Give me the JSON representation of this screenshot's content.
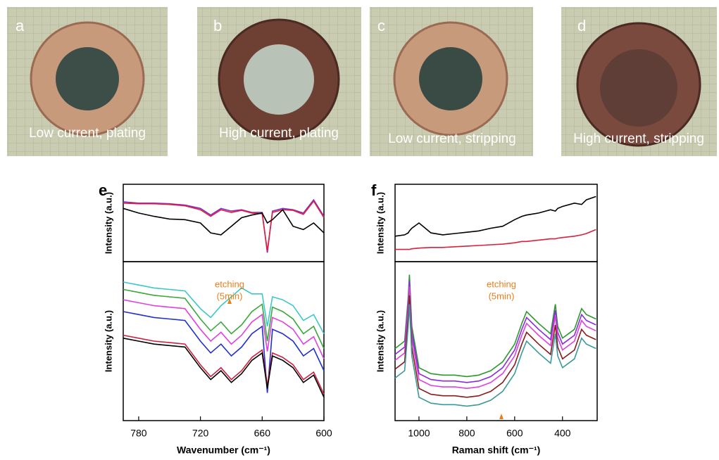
{
  "photos": [
    {
      "letter": "a",
      "caption": "Low current, plating"
    },
    {
      "letter": "b",
      "caption": "High current, plating"
    },
    {
      "letter": "c",
      "caption": "Low current, stripping"
    },
    {
      "letter": "d",
      "caption": "High current, stripping"
    }
  ],
  "chart_data": [
    {
      "type": "line",
      "label": "e",
      "xlabel": "Wavenumber (cm⁻¹)",
      "xlim": [
        795,
        600
      ],
      "xticks": [
        780,
        720,
        660,
        600
      ],
      "annotation": [
        "etching",
        "(5min)"
      ],
      "panels": [
        {
          "ylabel": "Intensity (a.u.)",
          "ylim": [
            0,
            1
          ],
          "x": [
            795,
            780,
            765,
            750,
            735,
            720,
            710,
            700,
            690,
            680,
            670,
            660,
            655,
            650,
            640,
            630,
            620,
            610,
            600
          ],
          "series": [
            {
              "color": "#7b2fd0",
              "values": [
                0.82,
                0.8,
                0.8,
                0.79,
                0.77,
                0.72,
                0.62,
                0.72,
                0.68,
                0.7,
                0.66,
                0.66,
                0.05,
                0.68,
                0.72,
                0.7,
                0.65,
                0.85,
                0.6
              ]
            },
            {
              "color": "#e0203a",
              "values": [
                0.8,
                0.79,
                0.79,
                0.78,
                0.76,
                0.7,
                0.6,
                0.7,
                0.66,
                0.69,
                0.65,
                0.64,
                0.08,
                0.66,
                0.7,
                0.69,
                0.63,
                0.83,
                0.58
              ]
            },
            {
              "color": "#000000",
              "values": [
                0.72,
                0.65,
                0.6,
                0.56,
                0.55,
                0.5,
                0.35,
                0.32,
                0.45,
                0.58,
                0.62,
                0.65,
                0.5,
                0.55,
                0.7,
                0.45,
                0.4,
                0.5,
                0.35
              ]
            }
          ]
        },
        {
          "ylabel": "Intensity (a.u.)",
          "ylim": [
            0,
            1
          ],
          "x": [
            795,
            780,
            765,
            750,
            735,
            720,
            710,
            700,
            690,
            680,
            670,
            660,
            655,
            650,
            640,
            630,
            620,
            610,
            600
          ],
          "series": [
            {
              "color": "#3cc8c8",
              "values": [
                0.9,
                0.88,
                0.86,
                0.85,
                0.84,
                0.72,
                0.66,
                0.74,
                0.8,
                0.86,
                0.82,
                0.82,
                0.6,
                0.8,
                0.78,
                0.74,
                0.64,
                0.68,
                0.55
              ]
            },
            {
              "color": "#3aa83a",
              "values": [
                0.85,
                0.83,
                0.81,
                0.8,
                0.79,
                0.65,
                0.57,
                0.63,
                0.55,
                0.61,
                0.7,
                0.75,
                0.5,
                0.73,
                0.7,
                0.65,
                0.55,
                0.6,
                0.45
              ]
            },
            {
              "color": "#e040e0",
              "values": [
                0.78,
                0.76,
                0.74,
                0.73,
                0.72,
                0.58,
                0.5,
                0.56,
                0.48,
                0.54,
                0.63,
                0.68,
                0.43,
                0.66,
                0.63,
                0.58,
                0.48,
                0.53,
                0.38
              ]
            },
            {
              "color": "#2030d0",
              "values": [
                0.7,
                0.68,
                0.66,
                0.65,
                0.64,
                0.5,
                0.42,
                0.48,
                0.4,
                0.46,
                0.55,
                0.6,
                0.15,
                0.58,
                0.55,
                0.5,
                0.4,
                0.45,
                0.3
              ]
            },
            {
              "color": "#d02040",
              "values": [
                0.54,
                0.52,
                0.5,
                0.49,
                0.48,
                0.34,
                0.26,
                0.32,
                0.24,
                0.3,
                0.39,
                0.44,
                0.2,
                0.42,
                0.39,
                0.34,
                0.24,
                0.29,
                0.14
              ]
            },
            {
              "color": "#000000",
              "values": [
                0.52,
                0.5,
                0.48,
                0.47,
                0.46,
                0.32,
                0.24,
                0.3,
                0.22,
                0.28,
                0.37,
                0.42,
                0.18,
                0.4,
                0.37,
                0.32,
                0.22,
                0.27,
                0.12
              ]
            }
          ]
        }
      ]
    },
    {
      "type": "line",
      "label": "f",
      "xlabel": "Raman shift (cm⁻¹)",
      "xlim": [
        1100,
        255
      ],
      "xticks": [
        1000,
        800,
        600,
        400
      ],
      "annotation": [
        "etching",
        "(5min)"
      ],
      "panels": [
        {
          "ylabel": "Intensity (a.u.)",
          "ylim": [
            0,
            1
          ],
          "x": [
            1100,
            1060,
            1045,
            1040,
            1030,
            1000,
            950,
            900,
            850,
            800,
            750,
            700,
            650,
            600,
            570,
            550,
            500,
            450,
            430,
            420,
            400,
            350,
            320,
            300,
            260
          ],
          "series": [
            {
              "color": "#000000",
              "values": [
                0.3,
                0.32,
                0.35,
                0.38,
                0.42,
                0.5,
                0.35,
                0.32,
                0.34,
                0.36,
                0.38,
                0.42,
                0.45,
                0.55,
                0.6,
                0.62,
                0.65,
                0.7,
                0.68,
                0.72,
                0.75,
                0.8,
                0.78,
                0.85,
                0.9
              ]
            },
            {
              "color": "#d8203a",
              "values": [
                0.1,
                0.1,
                0.1,
                0.1,
                0.11,
                0.12,
                0.13,
                0.13,
                0.14,
                0.15,
                0.16,
                0.17,
                0.18,
                0.2,
                0.22,
                0.22,
                0.24,
                0.26,
                0.26,
                0.27,
                0.28,
                0.3,
                0.32,
                0.34,
                0.4
              ]
            }
          ]
        },
        {
          "ylabel": "Intensity (a.u.)",
          "ylim": [
            0,
            1
          ],
          "x": [
            1100,
            1060,
            1045,
            1040,
            1030,
            1000,
            950,
            900,
            850,
            800,
            750,
            700,
            650,
            600,
            570,
            550,
            500,
            450,
            430,
            420,
            400,
            350,
            320,
            300,
            260
          ],
          "series": [
            {
              "color": "#2a9a2a",
              "values": [
                0.45,
                0.5,
                0.8,
                0.95,
                0.6,
                0.32,
                0.28,
                0.27,
                0.27,
                0.26,
                0.27,
                0.3,
                0.36,
                0.48,
                0.62,
                0.7,
                0.62,
                0.55,
                0.75,
                0.6,
                0.52,
                0.58,
                0.72,
                0.68,
                0.65
              ]
            },
            {
              "color": "#8a2be2",
              "values": [
                0.41,
                0.46,
                0.76,
                0.91,
                0.56,
                0.28,
                0.24,
                0.23,
                0.23,
                0.22,
                0.23,
                0.26,
                0.32,
                0.44,
                0.58,
                0.66,
                0.58,
                0.51,
                0.71,
                0.56,
                0.48,
                0.54,
                0.68,
                0.64,
                0.61
              ]
            },
            {
              "color": "#e040e0",
              "values": [
                0.37,
                0.42,
                0.72,
                0.87,
                0.52,
                0.24,
                0.2,
                0.19,
                0.19,
                0.18,
                0.19,
                0.22,
                0.28,
                0.4,
                0.54,
                0.62,
                0.54,
                0.47,
                0.67,
                0.52,
                0.44,
                0.5,
                0.64,
                0.6,
                0.57
              ]
            },
            {
              "color": "#8b1a1a",
              "values": [
                0.31,
                0.36,
                0.66,
                0.81,
                0.46,
                0.18,
                0.14,
                0.13,
                0.13,
                0.12,
                0.13,
                0.16,
                0.22,
                0.34,
                0.48,
                0.56,
                0.48,
                0.41,
                0.61,
                0.46,
                0.38,
                0.44,
                0.58,
                0.54,
                0.51
              ]
            },
            {
              "color": "#3a9a9a",
              "values": [
                0.25,
                0.3,
                0.6,
                0.75,
                0.4,
                0.12,
                0.08,
                0.07,
                0.07,
                0.06,
                0.07,
                0.1,
                0.16,
                0.28,
                0.42,
                0.5,
                0.42,
                0.35,
                0.55,
                0.4,
                0.32,
                0.38,
                0.52,
                0.48,
                0.45
              ]
            }
          ]
        }
      ]
    }
  ]
}
